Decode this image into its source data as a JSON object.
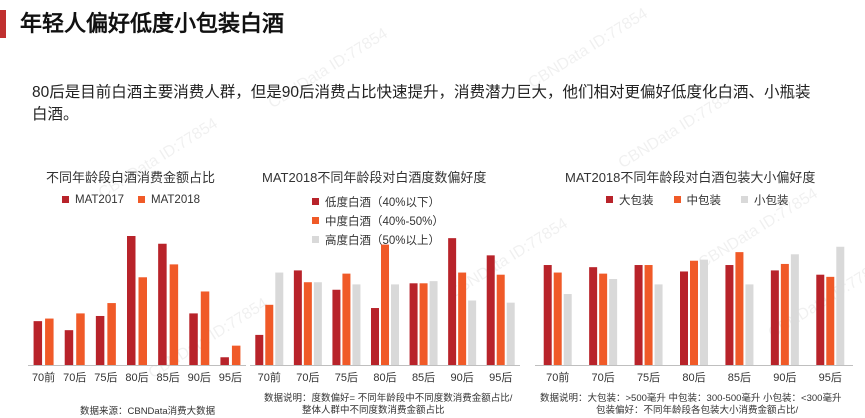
{
  "page": {
    "title": "年轻人偏好低度小包装白酒",
    "description": "80后是目前白酒主要消费人群，但是90后消费占比快速提升，消费潜力巨大，他们相对更偏好低度化白酒、小瓶装白酒。",
    "watermark": "CBNData ID:77854",
    "colors": {
      "accent": "#c0302f",
      "dark_red": "#b8232a",
      "orange": "#f05a28",
      "grey": "#d9d9d9"
    }
  },
  "chart_data": [
    {
      "type": "bar",
      "title": "不同年龄段白酒消费金额占比",
      "categories": [
        "70前",
        "70后",
        "75后",
        "80后",
        "85后",
        "90后",
        "95后"
      ],
      "series": [
        {
          "name": "MAT2017",
          "values": [
            34,
            27,
            38,
            100,
            94,
            40,
            6
          ]
        },
        {
          "name": "MAT2018",
          "values": [
            36,
            40,
            48,
            68,
            78,
            57,
            15
          ]
        }
      ],
      "ylim": [
        0,
        100
      ],
      "note": "数据来源：CBNData消费大数据"
    },
    {
      "type": "bar",
      "title": "MAT2018不同年龄段对白酒度数偏好度",
      "categories": [
        "70前",
        "70后",
        "75后",
        "80后",
        "85后",
        "90后",
        "95后"
      ],
      "series": [
        {
          "name": "低度白酒（40%以下）",
          "values": [
            28,
            88,
            70,
            53,
            76,
            118,
            102
          ]
        },
        {
          "name": "中度白酒（40%-50%）",
          "values": [
            56,
            77,
            85,
            112,
            76,
            86,
            84
          ]
        },
        {
          "name": "高度白酒（50%以上）",
          "values": [
            86,
            77,
            75,
            75,
            78,
            60,
            58
          ]
        }
      ],
      "ylim": [
        0,
        120
      ],
      "note": [
        "数据说明：度数偏好= 不同年龄段中不同度数消费金额占比/",
        "整体人群中不同度数消费金额占比"
      ]
    },
    {
      "type": "bar",
      "title": "MAT2018不同年龄段对白酒包装大小偏好度",
      "categories": [
        "70前",
        "70后",
        "75后",
        "80后",
        "85后",
        "90后",
        "95后"
      ],
      "series": [
        {
          "name": "大包装",
          "values": [
            93,
            91,
            93,
            87,
            93,
            88,
            84
          ]
        },
        {
          "name": "中包装",
          "values": [
            86,
            85,
            93,
            97,
            105,
            94,
            82
          ]
        },
        {
          "name": "小包装",
          "values": [
            66,
            80,
            75,
            98,
            75,
            103,
            110
          ]
        }
      ],
      "ylim": [
        0,
        120
      ],
      "note": [
        "数据说明：大包装：>500毫升  中包装：300-500毫升  小包装：<300毫升",
        "包装偏好：不同年龄段各包装大小消费金额占比/"
      ]
    }
  ]
}
